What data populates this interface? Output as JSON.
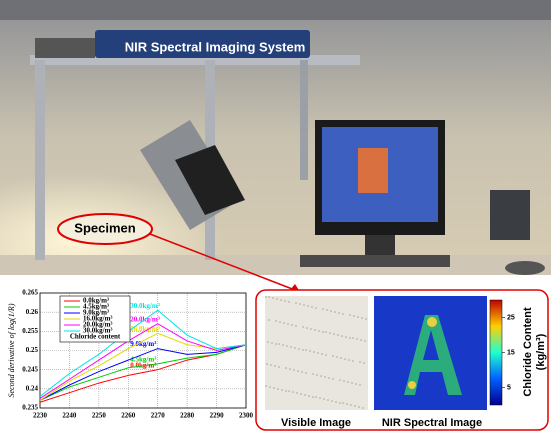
{
  "photo": {
    "system_label": "NIR Spectral Imaging System",
    "specimen_label": "Specimen"
  },
  "chart_data": {
    "type": "line",
    "ylabel": "Second derivative of log(1/R)",
    "legend_title": "Chloride content",
    "x": [
      2230,
      2240,
      2250,
      2260,
      2270,
      2280,
      2290,
      2300
    ],
    "xlim": [
      2230,
      2300
    ],
    "xticks": [
      2230,
      2240,
      2250,
      2260,
      2270,
      2280,
      2290,
      2300
    ],
    "ylim": [
      0.235,
      0.265
    ],
    "yticks": [
      0.235,
      0.24,
      0.245,
      0.25,
      0.255,
      0.26,
      0.265
    ],
    "grid": true,
    "series": [
      {
        "name": "0.0kg/m³",
        "color": "#ff0000",
        "values": [
          0.2365,
          0.239,
          0.2415,
          0.2435,
          0.245,
          0.2475,
          0.249,
          0.2515
        ]
      },
      {
        "name": "4.5kg/m³",
        "color": "#00cc00",
        "values": [
          0.237,
          0.2405,
          0.243,
          0.2455,
          0.2465,
          0.248,
          0.249,
          0.2515
        ]
      },
      {
        "name": "9.0kg/m³",
        "color": "#0000ff",
        "values": [
          0.237,
          0.241,
          0.2445,
          0.2475,
          0.2505,
          0.249,
          0.2495,
          0.2515
        ]
      },
      {
        "name": "16.0kg/m³",
        "color": "#e6d800",
        "values": [
          0.237,
          0.242,
          0.246,
          0.2505,
          0.2545,
          0.2515,
          0.2505,
          0.2515
        ]
      },
      {
        "name": "20.0kg/m³",
        "color": "#ff00ff",
        "values": [
          0.2375,
          0.2425,
          0.2475,
          0.2525,
          0.257,
          0.2525,
          0.25,
          0.2515
        ]
      },
      {
        "name": "30.0kg/m³",
        "color": "#00e5e5",
        "values": [
          0.238,
          0.244,
          0.249,
          0.255,
          0.2605,
          0.254,
          0.2505,
          0.2515
        ]
      }
    ]
  },
  "images": {
    "visible_label": "Visible Image",
    "nir_label": "NIR Spectral Image",
    "colorbar": {
      "title": "Chloride Content",
      "unit": "(kg/m³)",
      "lim": [
        0,
        30
      ],
      "ticks": [
        25,
        15,
        5
      ]
    }
  }
}
